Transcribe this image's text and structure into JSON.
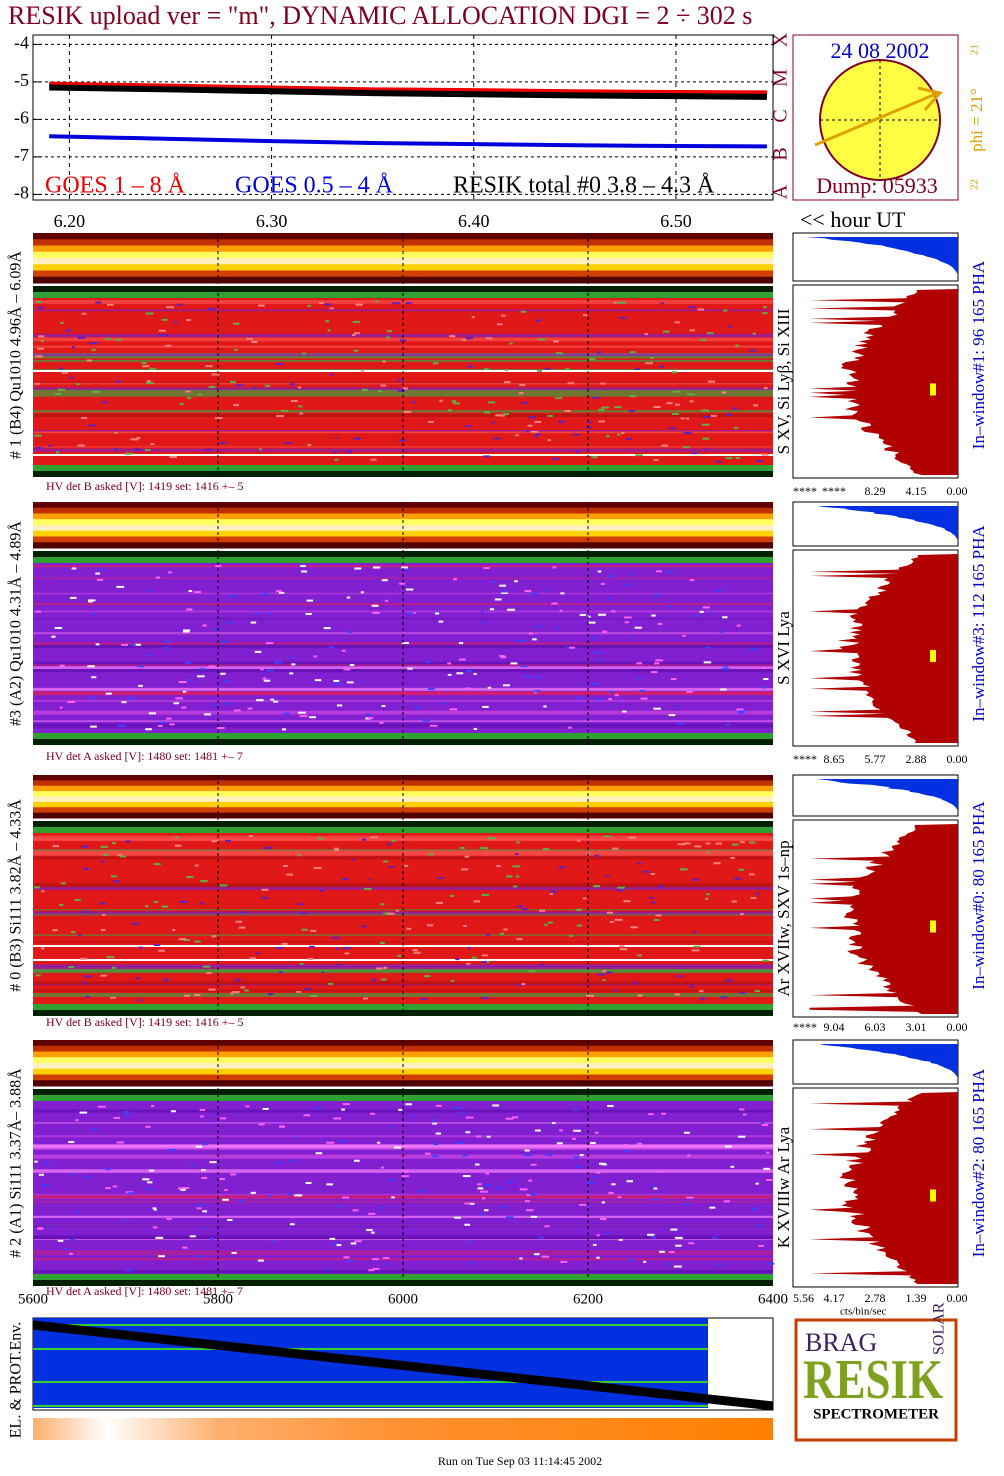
{
  "title": "RESIK upload ver = \"m\", DYNAMIC ALLOCATION  DGI =   2 ÷ 302 s",
  "goes": {
    "type": "line",
    "ylim": [
      -3.75,
      -8.15
    ],
    "yticks": [
      -4,
      -5,
      -6,
      -7,
      -8
    ],
    "xlim": [
      6.182,
      6.548
    ],
    "xticks": [
      {
        "value": 6.2,
        "label": "6.20"
      },
      {
        "value": 6.3,
        "label": "6.30"
      },
      {
        "value": 6.4,
        "label": "6.40"
      },
      {
        "value": 6.5,
        "label": "6.50"
      }
    ],
    "x": [
      6.19,
      6.25,
      6.3,
      6.35,
      6.4,
      6.45,
      6.5,
      6.545
    ],
    "series": [
      {
        "name": "GOES 1 – 8 Å",
        "color": "#ee0000",
        "values": [
          -5.05,
          -5.1,
          -5.15,
          -5.2,
          -5.22,
          -5.25,
          -5.27,
          -5.28
        ]
      },
      {
        "name": "GOES 0.5 – 4 Å",
        "color": "#0000dd",
        "values": [
          -6.45,
          -6.52,
          -6.58,
          -6.63,
          -6.66,
          -6.69,
          -6.71,
          -6.72
        ]
      },
      {
        "name": "RESIK total #0  3.8 – 4.3 Å",
        "color": "#000000",
        "values": [
          -5.15,
          -5.2,
          -5.25,
          -5.3,
          -5.33,
          -5.36,
          -5.38,
          -5.4
        ]
      }
    ],
    "xlabel": "<< hour UT"
  },
  "sun": {
    "date": "24 08 2002",
    "dump": "Dump: 05933",
    "phi": "phi = 21°",
    "classes": [
      "X",
      "M",
      "C",
      "B",
      "A"
    ],
    "n1": "21",
    "n2": "22"
  },
  "pixel_axis": {
    "xlim": [
      5600,
      6400
    ],
    "xticks": [
      5600,
      5800,
      6000,
      6200,
      6400
    ]
  },
  "panels": [
    {
      "label": "# 1 (B4) Qu1010 4.96Å – 6.09Å",
      "hv": "HV det B asked [V]:  1419 set:  1416 +–    5",
      "lines": "S XV, Si Lyβ, Si XIII",
      "window": "In–window#1:   96 165  PHA",
      "ticks": [
        "****",
        "****",
        "8.29",
        "4.15",
        "0.00"
      ]
    },
    {
      "label": "#3 (A2) Qu1010  4.31Å – 4.89Å",
      "hv": "HV det A asked [V]:  1480 set:  1481 +–    7",
      "lines": "S XVI Lya",
      "window": "In–window#3:  112 165  PHA",
      "ticks": [
        "****",
        "8.65",
        "5.77",
        "2.88",
        "0.00"
      ]
    },
    {
      "label": "# 0 (B3) Si111  3.82Å – 4.33Å",
      "hv": "HV det B asked [V]:  1419 set:  1416 +–    5",
      "lines": "Ar XVIIw,  SXV 1s–np",
      "window": "In–window#0:   80 165  PHA",
      "ticks": [
        "****",
        "9.04",
        "6.03",
        "3.01",
        "0.00"
      ]
    },
    {
      "label": "# 2 (A1) Si111  3.37Å– 3.88Å",
      "hv": "HV det A asked [V]:  1480 set:  1481 +–    7",
      "lines": "K XVIIIw  Ar Lya",
      "window": "In–window#2:   80 165  PHA",
      "ticks": [
        "5.56",
        "4.17",
        "2.78",
        "1.39",
        "0.00"
      ]
    }
  ],
  "hist_unit": "cts/bin/sec",
  "env_label": "EL. & PROT.Env.",
  "logo": {
    "name": "RESIK",
    "top": "BRAG",
    "side": "SOLAR",
    "bottom": "SPECTROMETER"
  },
  "footer": "Run on Tue Sep 03 11:14:45 2002"
}
